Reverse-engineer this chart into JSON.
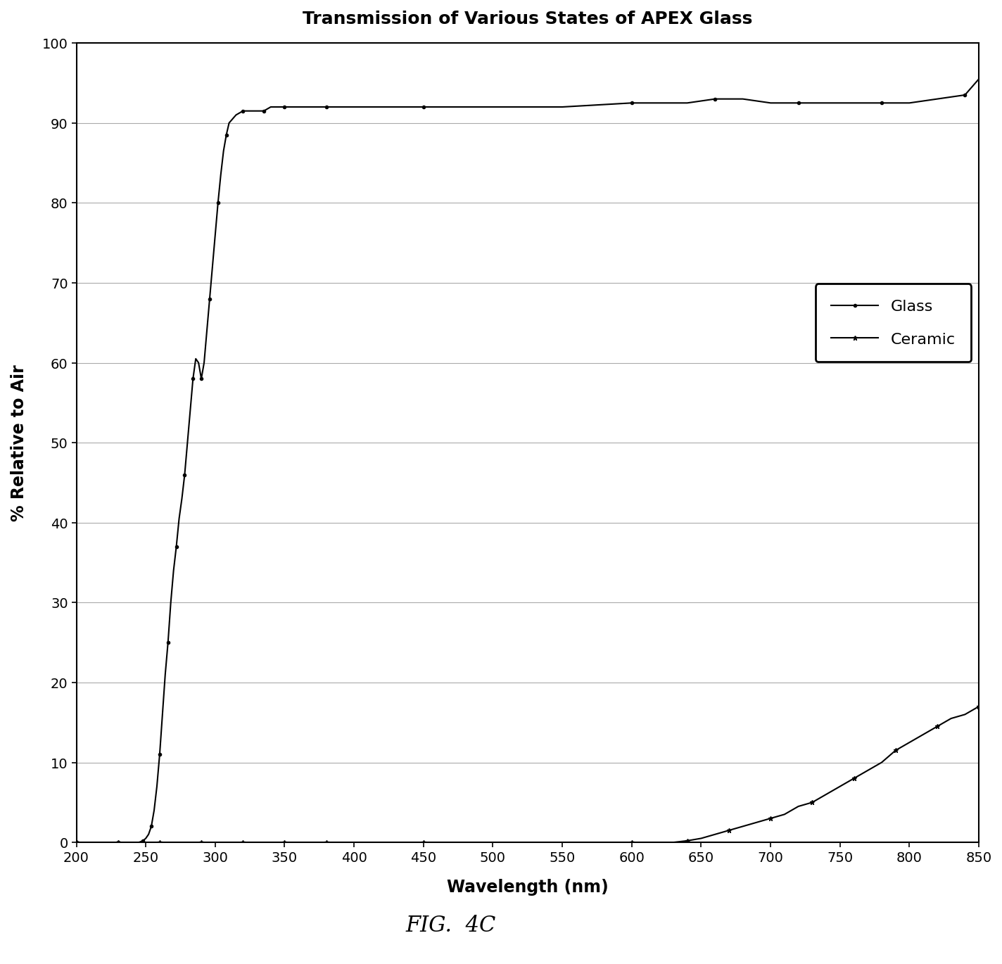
{
  "title": "Transmission of Various States of APEX Glass",
  "xlabel": "Wavelength (nm)",
  "ylabel": "% Relative to Air",
  "xlim": [
    200,
    850
  ],
  "ylim": [
    0,
    100
  ],
  "xticks": [
    200,
    250,
    300,
    350,
    400,
    450,
    500,
    550,
    600,
    650,
    700,
    750,
    800,
    850
  ],
  "yticks": [
    0,
    10,
    20,
    30,
    40,
    50,
    60,
    70,
    80,
    90,
    100
  ],
  "fig_caption": "FIG.  4C",
  "line_color": "#000000",
  "background_color": "#ffffff",
  "legend_entries": [
    "Glass",
    "Ceramic"
  ],
  "glass_x": [
    200,
    210,
    220,
    230,
    240,
    245,
    248,
    250,
    252,
    254,
    256,
    258,
    260,
    262,
    264,
    266,
    268,
    270,
    272,
    274,
    276,
    278,
    280,
    282,
    284,
    286,
    288,
    290,
    292,
    294,
    296,
    298,
    300,
    302,
    304,
    306,
    308,
    310,
    315,
    320,
    325,
    330,
    335,
    340,
    345,
    350,
    360,
    370,
    380,
    390,
    400,
    450,
    500,
    550,
    600,
    620,
    640,
    660,
    680,
    700,
    720,
    740,
    760,
    780,
    800,
    820,
    840,
    850
  ],
  "glass_y": [
    0,
    0,
    0,
    0,
    0,
    0,
    0.2,
    0.5,
    1.0,
    2.0,
    4.0,
    7.0,
    11.0,
    16.0,
    21.0,
    25.0,
    30.0,
    34.0,
    37.0,
    40.5,
    43.0,
    46.0,
    50.0,
    54.0,
    58.0,
    60.5,
    60.0,
    58.0,
    60.0,
    64.0,
    68.0,
    72.0,
    76.0,
    80.0,
    83.5,
    86.5,
    88.5,
    90.0,
    91.0,
    91.5,
    91.5,
    91.5,
    91.5,
    92.0,
    92.0,
    92.0,
    92.0,
    92.0,
    92.0,
    92.0,
    92.0,
    92.0,
    92.0,
    92.0,
    92.5,
    92.5,
    92.5,
    93.0,
    93.0,
    92.5,
    92.5,
    92.5,
    92.5,
    92.5,
    92.5,
    93.0,
    93.5,
    95.5
  ],
  "ceramic_x": [
    200,
    210,
    220,
    230,
    240,
    250,
    260,
    270,
    280,
    290,
    300,
    310,
    320,
    330,
    340,
    350,
    360,
    370,
    380,
    390,
    400,
    450,
    500,
    550,
    600,
    620,
    630,
    640,
    650,
    660,
    670,
    680,
    690,
    700,
    710,
    720,
    730,
    740,
    750,
    760,
    770,
    780,
    790,
    800,
    810,
    820,
    830,
    840,
    850
  ],
  "ceramic_y": [
    0,
    0,
    0,
    0,
    0,
    0,
    0,
    0,
    0,
    0,
    0,
    0,
    0,
    0,
    0,
    0,
    0,
    0,
    0,
    0,
    0,
    0,
    0,
    0,
    0,
    0,
    0,
    0.2,
    0.5,
    1.0,
    1.5,
    2.0,
    2.5,
    3.0,
    3.5,
    4.5,
    5.0,
    6.0,
    7.0,
    8.0,
    9.0,
    10.0,
    11.5,
    12.5,
    13.5,
    14.5,
    15.5,
    16.0,
    17.0
  ]
}
